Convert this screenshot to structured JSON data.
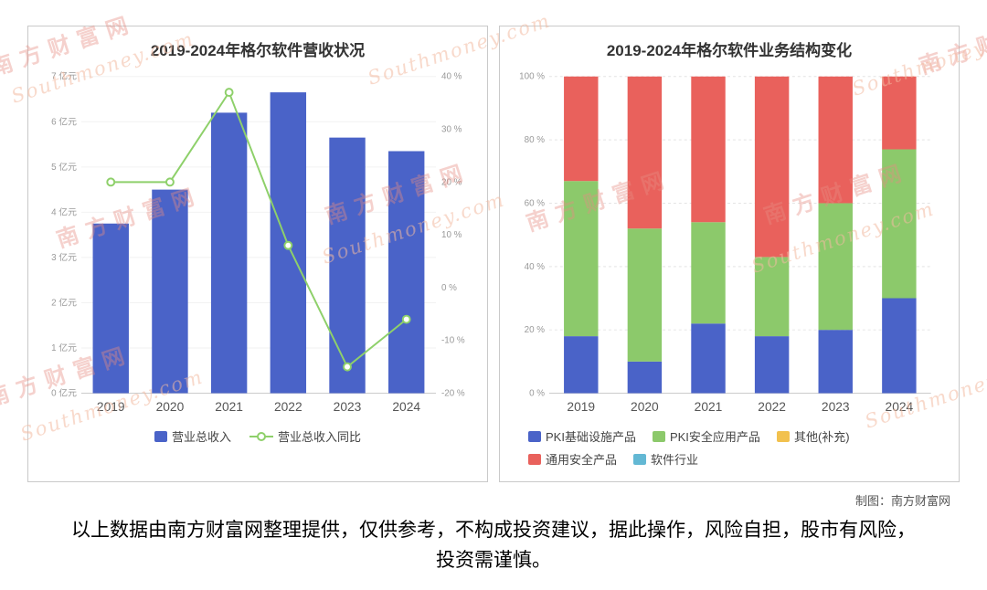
{
  "watermark": {
    "cn": "南方财富网",
    "en": "Southmoney.com"
  },
  "chart_data": [
    {
      "type": "bar",
      "title": "2019-2024年格尔软件营收状况",
      "categories": [
        "2019",
        "2020",
        "2021",
        "2022",
        "2023",
        "2024"
      ],
      "series": [
        {
          "name": "营业总收入",
          "type": "bar",
          "axis": "left",
          "unit": "亿元",
          "values": [
            3.75,
            4.5,
            6.2,
            6.65,
            5.65,
            5.35
          ],
          "color": "#4a63c8"
        },
        {
          "name": "营业总收入同比",
          "type": "line",
          "axis": "right",
          "unit": "%",
          "values": [
            20,
            20,
            37,
            8,
            -15,
            -6
          ],
          "color": "#8ed06a"
        }
      ],
      "left_axis": {
        "min": 0,
        "max": 7,
        "step": 1,
        "suffix": "亿元"
      },
      "right_axis": {
        "min": -20,
        "max": 40,
        "step": 10,
        "suffix": "%"
      },
      "grid": "faint-horizontal",
      "legend_position": "bottom"
    },
    {
      "type": "bar",
      "subtype": "stacked-100",
      "title": "2019-2024年格尔软件业务结构变化",
      "categories": [
        "2019",
        "2020",
        "2021",
        "2022",
        "2023",
        "2024"
      ],
      "series": [
        {
          "name": "PKI基础设施产品",
          "values": [
            18,
            10,
            22,
            18,
            20,
            30
          ],
          "color": "#4a63c8"
        },
        {
          "name": "PKI安全应用产品",
          "values": [
            49,
            42,
            32,
            25,
            40,
            47
          ],
          "color": "#8cc96b"
        },
        {
          "name": "其他(补充)",
          "values": [
            0,
            0,
            0,
            0,
            0,
            0
          ],
          "color": "#f2c14e"
        },
        {
          "name": "通用安全产品",
          "values": [
            33,
            48,
            46,
            57,
            40,
            23
          ],
          "color": "#e9615c"
        },
        {
          "name": "软件行业",
          "values": [
            0,
            0,
            0,
            0,
            0,
            0
          ],
          "color": "#63b8d4"
        }
      ],
      "y_axis": {
        "min": 0,
        "max": 100,
        "step": 20,
        "suffix": "%"
      },
      "grid": "dashed-horizontal",
      "legend_position": "bottom"
    }
  ],
  "credit": "制图：南方财富网",
  "disclaimer": "以上数据由南方财富网整理提供，仅供参考，不构成投资建议，据此操作，风险自担，股市有风险，投资需谨慎。"
}
